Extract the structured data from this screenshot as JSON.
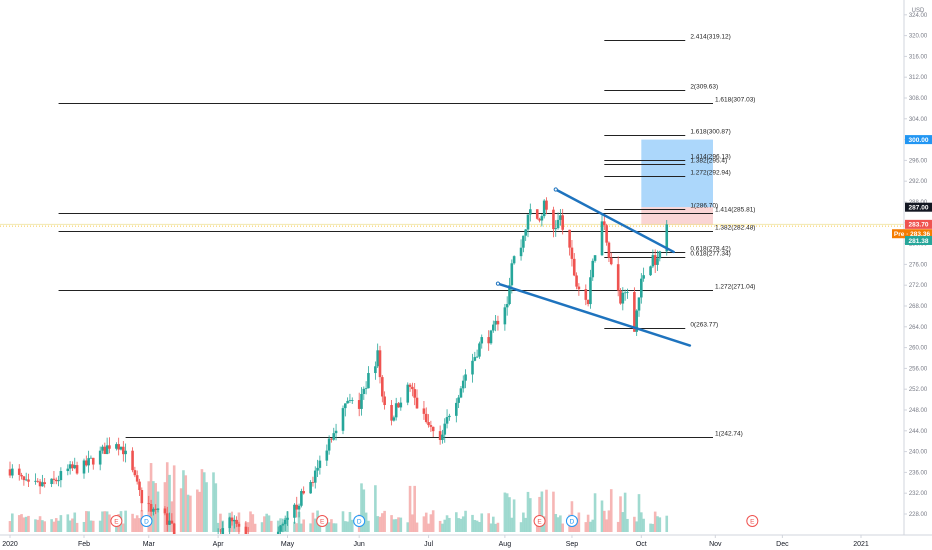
{
  "chart_data": {
    "type": "candlestick",
    "currency": "USD",
    "y_axis": {
      "min": 226,
      "max": 325,
      "ticks": [
        228,
        232,
        236,
        240,
        244,
        248,
        252,
        256,
        260,
        264,
        268,
        272,
        276,
        280,
        284,
        288,
        292,
        296,
        300,
        304,
        308,
        312,
        316,
        320,
        324
      ],
      "tick_labels": [
        "228.00",
        "232.00",
        "236.00",
        "240.00",
        "244.00",
        "248.00",
        "252.00",
        "256.00",
        "260.00",
        "264.00",
        "268.00",
        "272.00",
        "276.00",
        "280.00",
        "284.00",
        "288.00",
        "292.00",
        "296.00",
        "300.00",
        "304.00",
        "308.00",
        "312.00",
        "316.00",
        "320.00",
        "324.00"
      ]
    },
    "x_axis": {
      "labels": [
        {
          "label": "2020",
          "date": "2020-01-02"
        },
        {
          "label": "Feb",
          "date": "2020-02-03"
        },
        {
          "label": "Mar",
          "date": "2020-03-02"
        },
        {
          "label": "Apr",
          "date": "2020-04-01"
        },
        {
          "label": "May",
          "date": "2020-05-01"
        },
        {
          "label": "Jun",
          "date": "2020-06-01"
        },
        {
          "label": "Jul",
          "date": "2020-07-01"
        },
        {
          "label": "Aug",
          "date": "2020-08-03"
        },
        {
          "label": "Sep",
          "date": "2020-09-01"
        },
        {
          "label": "Oct",
          "date": "2020-10-01"
        },
        {
          "label": "Nov",
          "date": "2020-11-02"
        },
        {
          "label": "Dec",
          "date": "2020-12-01"
        },
        {
          "label": "2021",
          "date": "2021-01-04"
        }
      ]
    },
    "price_badges": [
      {
        "label": "300.00",
        "value": 300.0,
        "color": "#2196f3"
      },
      {
        "label": "287.00",
        "value": 287.0,
        "color": "#131722"
      },
      {
        "label": "283.70",
        "value": 283.7,
        "color": "#ef5350"
      },
      {
        "label": "Pre · 283.36",
        "value": 281.9,
        "color": "#f57c00"
      },
      {
        "label": "281.38",
        "value": 280.6,
        "color": "#26a69a"
      }
    ],
    "fib_levels": [
      {
        "label": "2.414(319.12)",
        "value": 319.12,
        "x_start": "2020-09-15",
        "x_end": "2020-10-20"
      },
      {
        "label": "2(309.63)",
        "value": 309.63,
        "x_start": "2020-09-15",
        "x_end": "2020-10-20"
      },
      {
        "label": "1.618(307.03)",
        "value": 307.03,
        "x_start": "2020-01-23",
        "x_end": "2020-11-01"
      },
      {
        "label": "1.618(300.87)",
        "value": 300.87,
        "x_start": "2020-09-15",
        "x_end": "2020-10-20"
      },
      {
        "label": "1.414(296.13)",
        "value": 296.13,
        "x_start": "2020-09-15",
        "x_end": "2020-10-20"
      },
      {
        "label": "1.382(295.4)",
        "value": 295.4,
        "x_start": "2020-09-15",
        "x_end": "2020-10-20"
      },
      {
        "label": "1.272(292.94)",
        "value": 292.94,
        "x_start": "2020-09-15",
        "x_end": "2020-10-20"
      },
      {
        "label": "1(286.70)",
        "value": 286.7,
        "x_start": "2020-09-15",
        "x_end": "2020-10-20"
      },
      {
        "label": "1.414(285.81)",
        "value": 285.81,
        "x_start": "2020-01-23",
        "x_end": "2020-11-01"
      },
      {
        "label": "1.382(282.48)",
        "value": 282.48,
        "x_start": "2020-01-23",
        "x_end": "2020-11-01"
      },
      {
        "label": "0.618(278.42)",
        "value": 278.42,
        "x_start": "2020-09-15",
        "x_end": "2020-10-20"
      },
      {
        "label": "0.618(277.34)",
        "value": 277.34,
        "x_start": "2020-09-15",
        "x_end": "2020-10-20"
      },
      {
        "label": "1.272(271.04)",
        "value": 271.04,
        "x_start": "2020-01-23",
        "x_end": "2020-11-01"
      },
      {
        "label": "0(263.77)",
        "value": 263.77,
        "x_start": "2020-09-15",
        "x_end": "2020-10-20"
      },
      {
        "label": "1(242.74)",
        "value": 242.74,
        "x_start": "2020-02-21",
        "x_end": "2020-11-01"
      }
    ],
    "channel_lines": [
      {
        "start": {
          "date": "2020-08-25",
          "value": 290.4
        },
        "end": {
          "date": "2020-10-15",
          "value": 278.4
        },
        "color": "#1e73be"
      },
      {
        "start": {
          "date": "2020-07-31",
          "value": 272.3
        },
        "end": {
          "date": "2020-10-22",
          "value": 260.4
        },
        "color": "#1e73be"
      }
    ],
    "target_box": {
      "x_start": "2020-10-01",
      "x_end": "2020-11-01",
      "profit_top": 300.0,
      "entry": 287.0,
      "stop": 283.6
    },
    "event_markers": [
      {
        "label": "E",
        "date": "2020-02-17",
        "kind": "earnings"
      },
      {
        "label": "D",
        "date": "2020-03-01",
        "kind": "dividend"
      },
      {
        "label": "E",
        "date": "2020-05-16",
        "kind": "earnings"
      },
      {
        "label": "D",
        "date": "2020-06-01",
        "kind": "dividend"
      },
      {
        "label": "E",
        "date": "2020-08-18",
        "kind": "earnings"
      },
      {
        "label": "D",
        "date": "2020-09-01",
        "kind": "dividend"
      },
      {
        "label": "E",
        "date": "2020-11-18",
        "kind": "earnings"
      }
    ],
    "price_path": [
      {
        "date": "2020-01-02",
        "close": 236.6
      },
      {
        "date": "2020-01-10",
        "close": 233.2
      },
      {
        "date": "2020-01-20",
        "close": 233.8
      },
      {
        "date": "2020-01-27",
        "close": 236.4
      },
      {
        "date": "2020-02-03",
        "close": 237.1
      },
      {
        "date": "2020-02-10",
        "close": 239.6
      },
      {
        "date": "2020-02-14",
        "close": 241.3
      },
      {
        "date": "2020-02-17",
        "close": 242.0
      },
      {
        "date": "2020-02-20",
        "close": 240.4
      },
      {
        "date": "2020-02-24",
        "close": 235.8
      },
      {
        "date": "2020-02-28",
        "close": 230.8
      },
      {
        "date": "2020-03-02",
        "close": 229.6
      },
      {
        "date": "2020-03-09",
        "close": 227.6
      },
      {
        "date": "2020-03-16",
        "close": 223.0
      },
      {
        "date": "2020-03-23",
        "close": 218.6
      },
      {
        "date": "2020-03-30",
        "close": 221.0
      },
      {
        "date": "2020-04-06",
        "close": 226.6
      },
      {
        "date": "2020-04-13",
        "close": 224.4
      },
      {
        "date": "2020-04-20",
        "close": 222.4
      },
      {
        "date": "2020-04-27",
        "close": 224.3
      },
      {
        "date": "2020-05-01",
        "close": 226.4
      },
      {
        "date": "2020-05-06",
        "close": 230.6
      },
      {
        "date": "2020-05-11",
        "close": 234.2
      },
      {
        "date": "2020-05-14",
        "close": 236.6
      },
      {
        "date": "2020-05-19",
        "close": 242.4
      },
      {
        "date": "2020-05-22",
        "close": 245.2
      },
      {
        "date": "2020-05-27",
        "close": 249.4
      },
      {
        "date": "2020-06-01",
        "close": 248.8
      },
      {
        "date": "2020-06-05",
        "close": 254.4
      },
      {
        "date": "2020-06-09",
        "close": 258.6
      },
      {
        "date": "2020-06-11",
        "close": 250.6
      },
      {
        "date": "2020-06-15",
        "close": 246.4
      },
      {
        "date": "2020-06-19",
        "close": 250.4
      },
      {
        "date": "2020-06-23",
        "close": 252.6
      },
      {
        "date": "2020-06-26",
        "close": 248.8
      },
      {
        "date": "2020-06-30",
        "close": 245.6
      },
      {
        "date": "2020-07-06",
        "close": 241.4
      },
      {
        "date": "2020-07-10",
        "close": 247.6
      },
      {
        "date": "2020-07-14",
        "close": 251.4
      },
      {
        "date": "2020-07-17",
        "close": 255.0
      },
      {
        "date": "2020-07-21",
        "close": 258.4
      },
      {
        "date": "2020-07-24",
        "close": 261.4
      },
      {
        "date": "2020-07-28",
        "close": 262.2
      },
      {
        "date": "2020-07-31",
        "close": 265.4
      },
      {
        "date": "2020-08-04",
        "close": 269.2
      },
      {
        "date": "2020-08-06",
        "close": 276.4
      },
      {
        "date": "2020-08-10",
        "close": 279.6
      },
      {
        "date": "2020-08-12",
        "close": 283.4
      },
      {
        "date": "2020-08-14",
        "close": 286.2
      },
      {
        "date": "2020-08-18",
        "close": 284.4
      },
      {
        "date": "2020-08-20",
        "close": 287.4
      },
      {
        "date": "2020-08-24",
        "close": 283.0
      },
      {
        "date": "2020-08-27",
        "close": 284.8
      },
      {
        "date": "2020-08-31",
        "close": 278.2
      },
      {
        "date": "2020-09-03",
        "close": 272.2
      },
      {
        "date": "2020-09-08",
        "close": 268.6
      },
      {
        "date": "2020-09-10",
        "close": 276.2
      },
      {
        "date": "2020-09-14",
        "close": 285.4
      },
      {
        "date": "2020-09-16",
        "close": 280.8
      },
      {
        "date": "2020-09-18",
        "close": 276.0
      },
      {
        "date": "2020-09-22",
        "close": 268.6
      },
      {
        "date": "2020-09-24",
        "close": 271.8
      },
      {
        "date": "2020-09-28",
        "close": 264.2
      },
      {
        "date": "2020-09-30",
        "close": 270.6
      },
      {
        "date": "2020-10-02",
        "close": 274.2
      },
      {
        "date": "2020-10-06",
        "close": 277.6
      },
      {
        "date": "2020-10-08",
        "close": 276.4
      },
      {
        "date": "2020-10-12",
        "close": 283.7
      }
    ]
  }
}
